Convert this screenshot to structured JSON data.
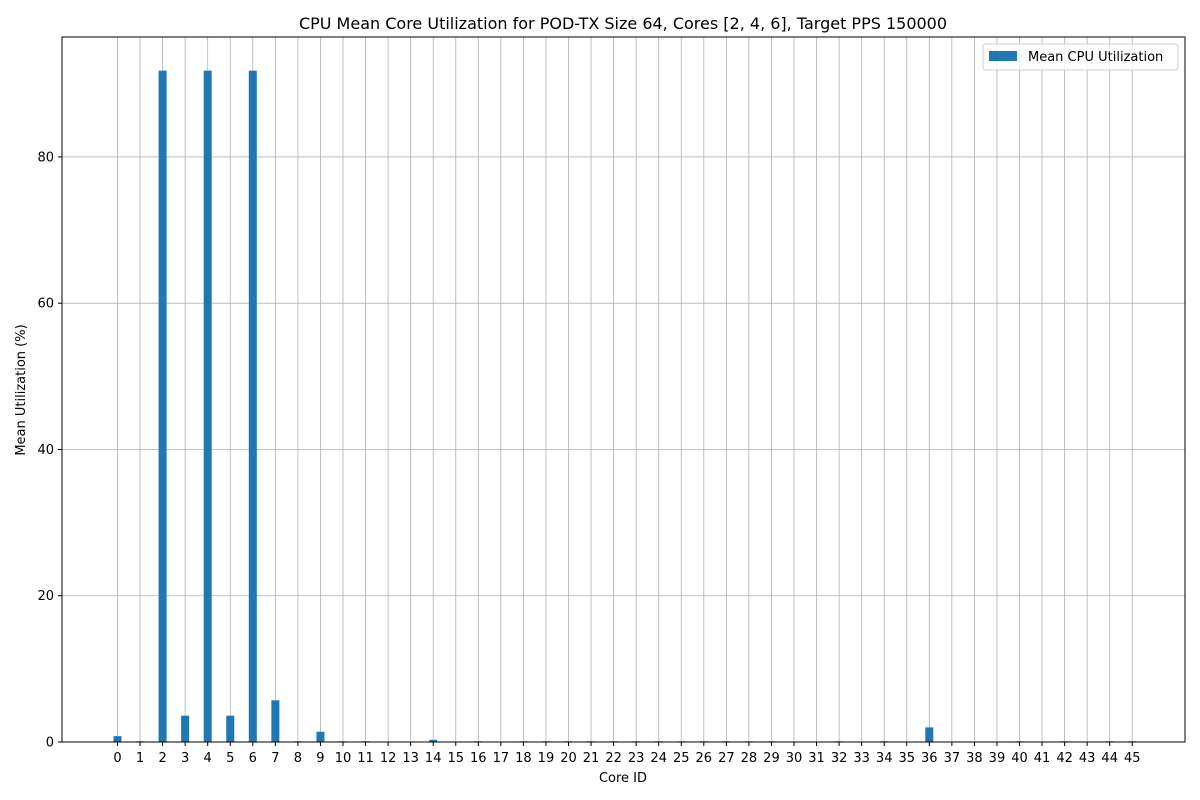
{
  "chart_data": {
    "type": "bar",
    "title": "CPU Mean Core Utilization for POD-TX Size 64, Cores [2, 4, 6], Target PPS 150000",
    "xlabel": "Core ID",
    "ylabel": "Mean Utilization (%)",
    "categories": [
      "0",
      "1",
      "2",
      "3",
      "4",
      "5",
      "6",
      "7",
      "8",
      "9",
      "10",
      "11",
      "12",
      "13",
      "14",
      "15",
      "16",
      "17",
      "18",
      "19",
      "20",
      "21",
      "22",
      "23",
      "24",
      "25",
      "26",
      "27",
      "28",
      "29",
      "30",
      "31",
      "32",
      "33",
      "34",
      "35",
      "36",
      "37",
      "38",
      "39",
      "40",
      "41",
      "42",
      "43",
      "44",
      "45"
    ],
    "series": [
      {
        "name": "Mean CPU Utilization",
        "color": "#1f77b4",
        "values": [
          0.8,
          0.1,
          91.8,
          3.6,
          91.8,
          3.6,
          91.8,
          5.7,
          0.1,
          1.4,
          0.1,
          0.1,
          0.0,
          0.0,
          0.3,
          0.0,
          0.1,
          0.0,
          0.1,
          0.1,
          0.1,
          0.1,
          0.1,
          0.1,
          0.1,
          0.1,
          0.1,
          0.1,
          0.1,
          0.1,
          0.0,
          0.0,
          0.1,
          0.0,
          0.1,
          0.0,
          2.0,
          0.0,
          0.0,
          0.0,
          0.1,
          0.0,
          0.1,
          0.0,
          0.1,
          0.1
        ]
      }
    ],
    "ylim": [
      0,
      96.4
    ],
    "yticks": [
      0,
      20,
      40,
      60,
      80
    ],
    "grid": true,
    "legend_position": "top-right"
  }
}
